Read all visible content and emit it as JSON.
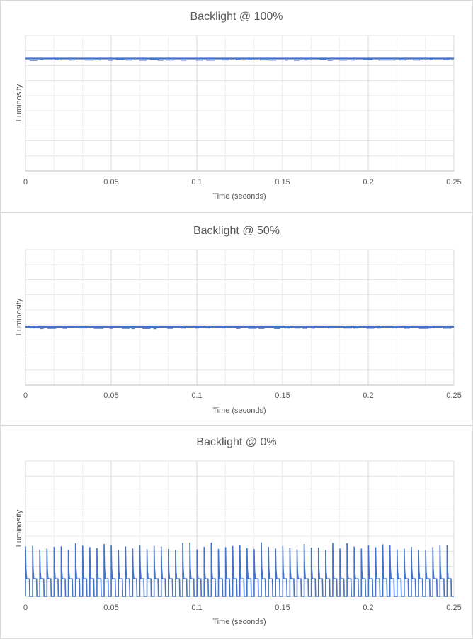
{
  "chart_data": [
    {
      "type": "line",
      "title": "Backlight @ 100%",
      "xlabel": "Time (seconds)",
      "ylabel": "Luminosity",
      "xlim": [
        0,
        0.25
      ],
      "x_ticks": [
        "0",
        "0.05",
        "0.1",
        "0.15",
        "0.2",
        "0.25"
      ],
      "ylim": [
        0,
        10
      ],
      "grid": true,
      "color": "#4472C4",
      "series": [
        {
          "x": [
            0,
            0.25
          ],
          "values": [
            8.3,
            8.3
          ]
        }
      ]
    },
    {
      "type": "line",
      "title": "Backlight @ 50%",
      "xlabel": "Time (seconds)",
      "ylabel": "Luminosity",
      "xlim": [
        0,
        0.25
      ],
      "x_ticks": [
        "0",
        "0.05",
        "0.1",
        "0.15",
        "0.2",
        "0.25"
      ],
      "ylim": [
        0,
        10
      ],
      "grid": true,
      "color": "#4472C4",
      "series": [
        {
          "x": [
            0,
            0.25
          ],
          "values": [
            4.3,
            4.3
          ]
        }
      ]
    },
    {
      "type": "line",
      "title": "Backlight @ 0%",
      "xlabel": "Time (seconds)",
      "ylabel": "Luminosity",
      "xlim": [
        0,
        0.25
      ],
      "x_ticks": [
        "0",
        "0.05",
        "0.1",
        "0.15",
        "0.2",
        "0.25"
      ],
      "ylim": [
        0,
        10
      ],
      "grid": true,
      "color": "#4472C4",
      "pulse_period": 0.00417,
      "pulse_peak": [
        3.4,
        4.0
      ],
      "pulse_plateau": 1.3,
      "baseline": 0,
      "series": [
        {
          "x": [
            0,
            0.25
          ],
          "values": [
            0,
            0
          ]
        }
      ]
    }
  ]
}
